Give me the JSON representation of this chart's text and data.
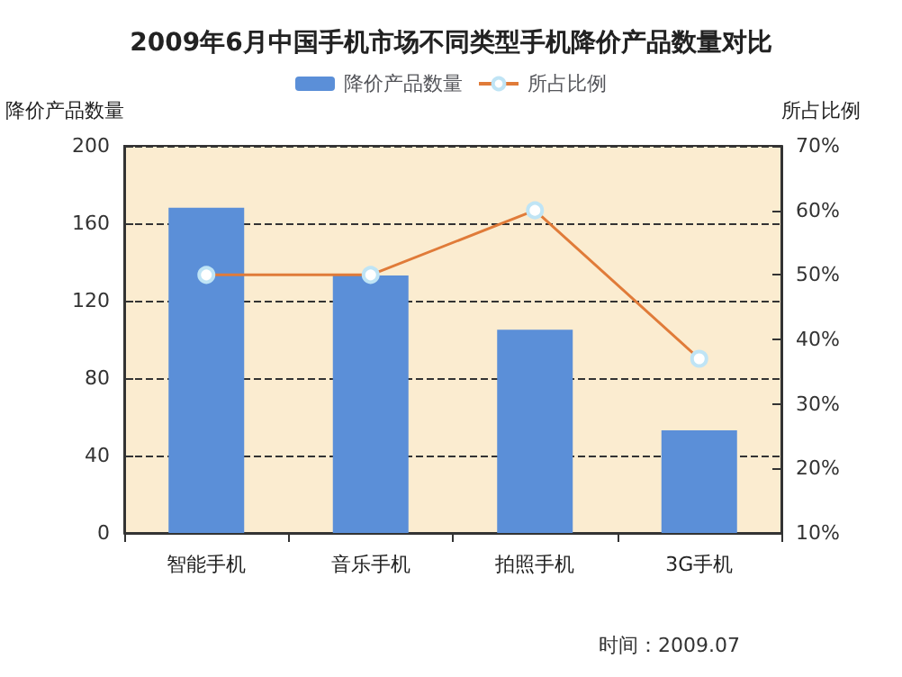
{
  "chart_data": {
    "type": "bar",
    "title": "2009年6月中国手机市场不同类型手机降价产品数量对比",
    "ylabel": "降价产品数量",
    "y2label": "所占比例",
    "categories": [
      "智能手机",
      "音乐手机",
      "拍照手机",
      "3G手机"
    ],
    "series": [
      {
        "name": "降价产品数量",
        "color": "#5b8fd8",
        "values": [
          168,
          133,
          105,
          53
        ]
      },
      {
        "name": "所占比例",
        "type": "line",
        "axis": "y2",
        "color": "#e07b39",
        "values": [
          50,
          50,
          60,
          37
        ]
      }
    ],
    "ylim": [
      0,
      200
    ],
    "yticks": [
      0,
      40,
      80,
      120,
      160,
      200
    ],
    "y2lim": [
      10,
      70
    ],
    "y2ticks": [
      {
        "value": 10,
        "label": "10%"
      },
      {
        "value": 20,
        "label": "20%"
      },
      {
        "value": 30,
        "label": "30%"
      },
      {
        "value": 40,
        "label": "40%"
      },
      {
        "value": 50,
        "label": "50%"
      },
      {
        "value": 60,
        "label": "60%"
      },
      {
        "value": 70,
        "label": "70%"
      }
    ],
    "grid": "y",
    "legend": "top",
    "marker": "circle",
    "annotations": [
      "时间：2009.07"
    ]
  }
}
